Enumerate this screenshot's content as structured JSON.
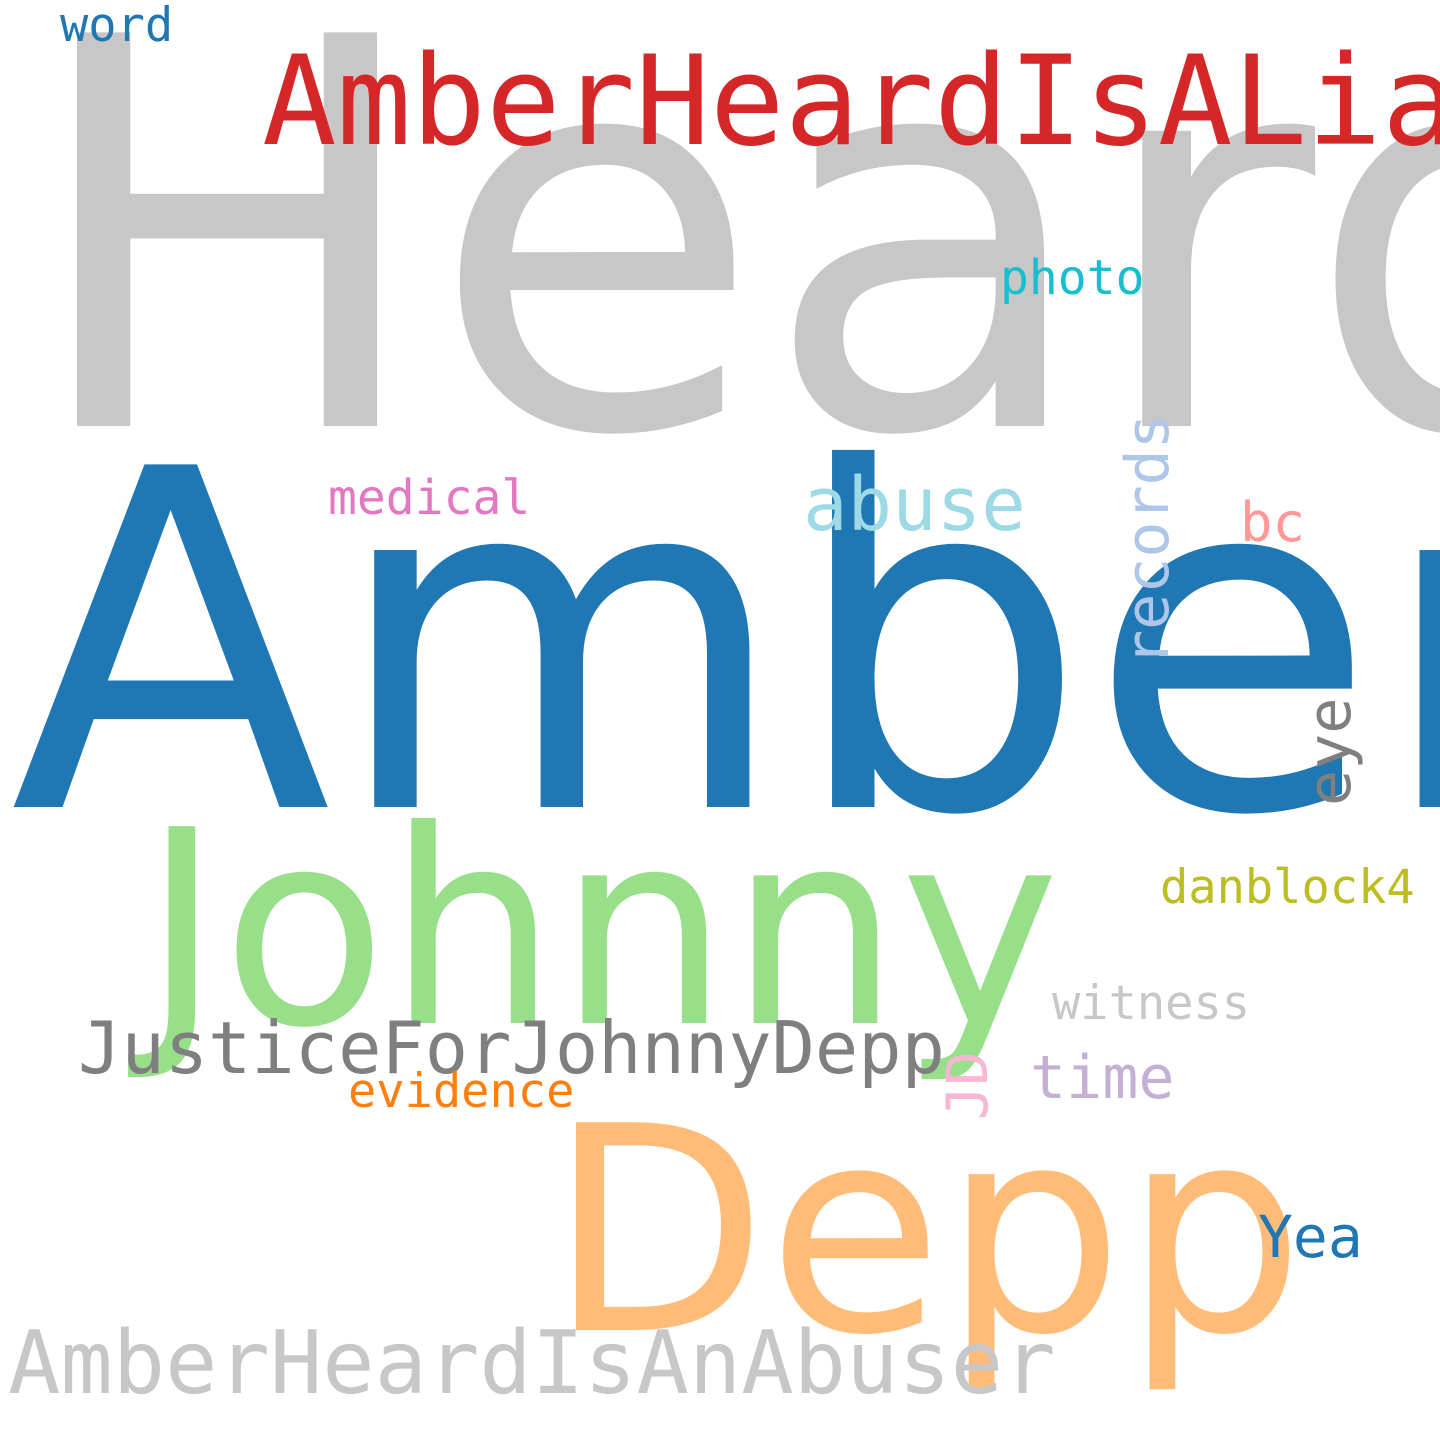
{
  "words": [
    {
      "id": "heard",
      "text": "Heard",
      "color": "#c7c7c7"
    },
    {
      "id": "amber",
      "text": "Amber",
      "color": "#1f77b4"
    },
    {
      "id": "johnny",
      "text": "Johnny",
      "color": "#98df8a"
    },
    {
      "id": "depp",
      "text": "Depp",
      "color": "#ffbb78"
    },
    {
      "id": "amberheardisaliar",
      "text": "AmberHeardIsALiar",
      "color": "#d62728"
    },
    {
      "id": "amberheardisanabuser",
      "text": "AmberHeardIsAnAbuser",
      "color": "#c7c7c7"
    },
    {
      "id": "justiceforjohnnydepp",
      "text": "JusticeForJohnnyDepp",
      "color": "#7f7f7f"
    },
    {
      "id": "abuse",
      "text": "abuse",
      "color": "#9edae5"
    },
    {
      "id": "records",
      "text": "records",
      "color": "#aec7e8",
      "orientation": "vertical"
    },
    {
      "id": "medical",
      "text": "medical",
      "color": "#e377c2"
    },
    {
      "id": "photo",
      "text": "photo",
      "color": "#17becf"
    },
    {
      "id": "bc",
      "text": "bc",
      "color": "#ff9896"
    },
    {
      "id": "eye",
      "text": "eye",
      "color": "#7f7f7f",
      "orientation": "vertical"
    },
    {
      "id": "danblock4",
      "text": "danblock4",
      "color": "#bcbd22"
    },
    {
      "id": "witness",
      "text": "witness",
      "color": "#c7c7c7"
    },
    {
      "id": "time",
      "text": "time",
      "color": "#c5b0d5"
    },
    {
      "id": "jd",
      "text": "JD",
      "color": "#f7b6d2",
      "orientation": "vertical"
    },
    {
      "id": "evidence",
      "text": "evidence",
      "color": "#ff7f0e"
    },
    {
      "id": "yea",
      "text": "Yea",
      "color": "#1f77b4"
    },
    {
      "id": "word",
      "text": "word",
      "color": "#1f77b4"
    }
  ]
}
